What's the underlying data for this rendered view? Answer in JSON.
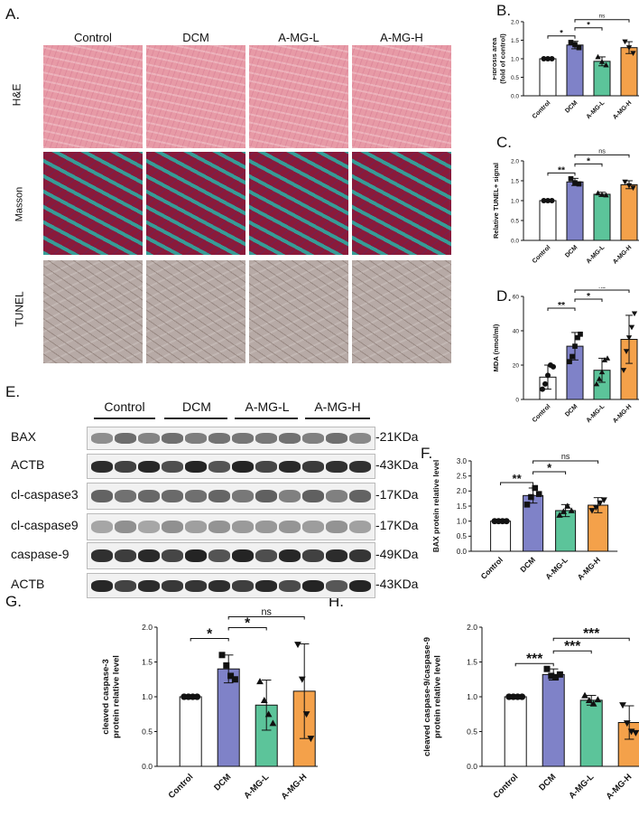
{
  "panels": {
    "A": "A.",
    "B": "B.",
    "C": "C.",
    "D": "D.",
    "E": "E.",
    "F": "F.",
    "G": "G.",
    "H": "H."
  },
  "histology": {
    "columns": [
      "Control",
      "DCM",
      "A-MG-L",
      "A-MG-H"
    ],
    "rows": [
      "H&E",
      "Masson",
      "TUNEL"
    ]
  },
  "western_blot": {
    "groups": [
      "Control",
      "DCM",
      "A-MG-L",
      "A-MG-H"
    ],
    "bands": [
      {
        "name": "BAX",
        "size": "-21KDa"
      },
      {
        "name": "ACTB",
        "size": "-43KDa"
      },
      {
        "name": "cl-caspase3",
        "size": "-17KDa"
      },
      {
        "name": "cl-caspase9",
        "size": "-17KDa"
      },
      {
        "name": "caspase-9",
        "size": "-49KDa"
      },
      {
        "name": "ACTB",
        "size": "-43KDa"
      }
    ]
  },
  "colors": {
    "Control": "#ffffff",
    "DCM": "#7f82c8",
    "A-MG-L": "#5cc49a",
    "A-MG-H": "#f4a14a"
  },
  "chart_data": [
    {
      "panel": "B",
      "type": "bar",
      "categories": [
        "Control",
        "DCM",
        "A-MG-L",
        "A-MG-H"
      ],
      "values": [
        1.0,
        1.37,
        0.93,
        1.3
      ],
      "errors": [
        0.0,
        0.1,
        0.12,
        0.16
      ],
      "points": [
        [
          1.0,
          1.0,
          1.0
        ],
        [
          1.44,
          1.38,
          1.3
        ],
        [
          1.05,
          0.92,
          0.83
        ],
        [
          1.46,
          1.3,
          1.15
        ]
      ],
      "markers": [
        "circle",
        "square",
        "triangle",
        "triangle-down"
      ],
      "ylabel": "Fibrosis area\n(fold of control)",
      "ylim": [
        0,
        2.0
      ],
      "yticks": [
        0,
        0.5,
        1.0,
        1.5,
        2.0
      ],
      "ytick_labels": [
        "0.0",
        "0.5",
        "1.0",
        "1.5",
        "2.0"
      ],
      "sig": [
        {
          "a": 0,
          "b": 1,
          "label": "*",
          "level": 0
        },
        {
          "a": 1,
          "b": 2,
          "label": "*",
          "level": 1
        },
        {
          "a": 1,
          "b": 3,
          "label": "ns",
          "level": 2
        }
      ]
    },
    {
      "panel": "C",
      "type": "bar",
      "categories": [
        "Control",
        "DCM",
        "A-MG-L",
        "A-MG-H"
      ],
      "values": [
        1.0,
        1.47,
        1.16,
        1.4
      ],
      "errors": [
        0.0,
        0.09,
        0.05,
        0.1
      ],
      "points": [
        [
          1.0,
          1.0,
          1.0
        ],
        [
          1.55,
          1.45,
          1.42
        ],
        [
          1.19,
          1.15,
          1.14
        ],
        [
          1.47,
          1.38,
          1.32
        ]
      ],
      "markers": [
        "circle",
        "square",
        "triangle",
        "triangle-down"
      ],
      "ylabel": "Relative TUNEL+ signal",
      "ylim": [
        0,
        2.0
      ],
      "yticks": [
        0,
        0.5,
        1.0,
        1.5,
        2.0
      ],
      "ytick_labels": [
        "0.0",
        "0.5",
        "1.0",
        "1.5",
        "2.0"
      ],
      "sig": [
        {
          "a": 0,
          "b": 1,
          "label": "**",
          "level": 0
        },
        {
          "a": 1,
          "b": 2,
          "label": "*",
          "level": 1
        },
        {
          "a": 1,
          "b": 3,
          "label": "ns",
          "level": 2
        }
      ]
    },
    {
      "panel": "D",
      "type": "bar",
      "categories": [
        "Control",
        "DCM",
        "A-MG-L",
        "A-MG-H"
      ],
      "values": [
        13,
        31,
        17,
        35
      ],
      "errors": [
        7,
        8,
        7,
        14
      ],
      "points": [
        [
          6,
          9,
          14,
          20,
          19
        ],
        [
          22,
          25,
          31,
          36,
          38
        ],
        [
          9,
          12,
          16,
          23,
          24
        ],
        [
          17,
          28,
          36,
          42,
          50
        ]
      ],
      "markers": [
        "circle",
        "square",
        "triangle",
        "triangle-down"
      ],
      "ylabel": "MDA (nmol/ml)",
      "ylim": [
        0,
        60
      ],
      "yticks": [
        0,
        20,
        40,
        60
      ],
      "ytick_labels": [
        "0",
        "20",
        "40",
        "60"
      ],
      "sig": [
        {
          "a": 0,
          "b": 1,
          "label": "**",
          "level": 0
        },
        {
          "a": 1,
          "b": 2,
          "label": "*",
          "level": 1
        },
        {
          "a": 1,
          "b": 3,
          "label": "ns",
          "level": 2
        }
      ]
    },
    {
      "panel": "F",
      "type": "bar",
      "categories": [
        "Control",
        "DCM",
        "A-MG-L",
        "A-MG-H"
      ],
      "values": [
        1.0,
        1.85,
        1.35,
        1.53
      ],
      "errors": [
        0.0,
        0.25,
        0.2,
        0.25
      ],
      "points": [
        [
          1.0,
          1.0,
          1.0,
          1.0
        ],
        [
          1.55,
          1.8,
          2.1,
          1.9
        ],
        [
          1.2,
          1.32,
          1.5,
          1.35
        ],
        [
          1.35,
          1.45,
          1.6,
          1.7
        ]
      ],
      "markers": [
        "circle",
        "square",
        "triangle",
        "triangle-down"
      ],
      "ylabel": "BAX protein relative level",
      "ylim": [
        0,
        3.0
      ],
      "yticks": [
        0,
        0.5,
        1.0,
        1.5,
        2.0,
        2.5,
        3.0
      ],
      "ytick_labels": [
        "0.0",
        "0.5",
        "1.0",
        "1.5",
        "2.0",
        "2.5",
        "3.0"
      ],
      "sig": [
        {
          "a": 0,
          "b": 1,
          "label": "**",
          "level": 0
        },
        {
          "a": 1,
          "b": 2,
          "label": "*",
          "level": 1
        },
        {
          "a": 1,
          "b": 3,
          "label": "ns",
          "level": 2
        }
      ]
    },
    {
      "panel": "G",
      "type": "bar",
      "categories": [
        "Control",
        "DCM",
        "A-MG-L",
        "A-MG-H"
      ],
      "values": [
        1.0,
        1.4,
        0.88,
        1.08
      ],
      "errors": [
        0.0,
        0.2,
        0.36,
        0.68
      ],
      "points": [
        [
          1.0,
          1.0,
          1.0,
          1.0
        ],
        [
          1.6,
          1.45,
          1.3,
          1.25
        ],
        [
          1.22,
          0.95,
          0.75,
          0.62
        ],
        [
          1.75,
          1.25,
          0.75,
          0.4
        ]
      ],
      "markers": [
        "circle",
        "square",
        "triangle",
        "triangle-down"
      ],
      "ylabel": "cleaved caspase-3\nprotein relative level",
      "ylim": [
        0,
        2.0
      ],
      "yticks": [
        0,
        0.5,
        1.0,
        1.5,
        2.0
      ],
      "ytick_labels": [
        "0.0",
        "0.5",
        "1.0",
        "1.5",
        "2.0"
      ],
      "sig": [
        {
          "a": 0,
          "b": 1,
          "label": "*",
          "level": 0
        },
        {
          "a": 1,
          "b": 2,
          "label": "*",
          "level": 1
        },
        {
          "a": 1,
          "b": 3,
          "label": "ns",
          "level": 2
        }
      ]
    },
    {
      "panel": "H",
      "type": "bar",
      "categories": [
        "Control",
        "DCM",
        "A-MG-L",
        "A-MG-H"
      ],
      "values": [
        1.0,
        1.32,
        0.95,
        0.63
      ],
      "errors": [
        0.0,
        0.08,
        0.07,
        0.24
      ],
      "points": [
        [
          1.0,
          1.0,
          1.0,
          1.0
        ],
        [
          1.4,
          1.3,
          1.28,
          1.32
        ],
        [
          1.02,
          0.95,
          0.9,
          0.96
        ],
        [
          0.88,
          0.62,
          0.5,
          0.48
        ]
      ],
      "markers": [
        "circle",
        "square",
        "triangle",
        "triangle-down"
      ],
      "ylabel": "cleaved caspase-9/caspase-9\nprotein relative level",
      "ylim": [
        0,
        2.0
      ],
      "yticks": [
        0,
        0.5,
        1.0,
        1.5,
        2.0
      ],
      "ytick_labels": [
        "0.0",
        "0.5",
        "1.0",
        "1.5",
        "2.0"
      ],
      "sig": [
        {
          "a": 0,
          "b": 1,
          "label": "***",
          "level": 0
        },
        {
          "a": 1,
          "b": 2,
          "label": "***",
          "level": 1
        },
        {
          "a": 1,
          "b": 3,
          "label": "***",
          "level": 2
        }
      ]
    }
  ]
}
